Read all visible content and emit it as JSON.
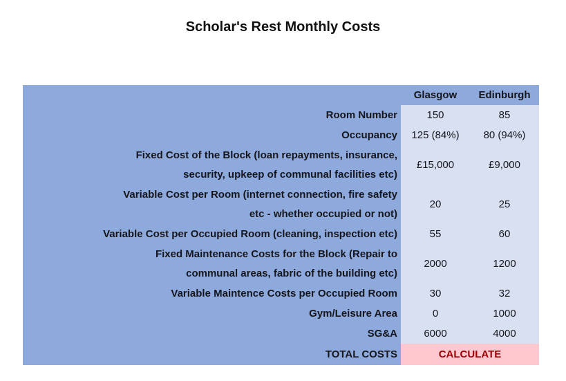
{
  "title": "Scholar's Rest Monthly Costs",
  "table": {
    "col_headers": [
      "Glasgow",
      "Edinburgh"
    ],
    "rows": [
      {
        "label": "Room Number",
        "glasgow": "150",
        "edinburgh": "85"
      },
      {
        "label": "Occupancy",
        "glasgow": "125 (84%)",
        "edinburgh": "80 (94%)"
      },
      {
        "label": "Fixed Cost of the Block (loan repayments, insurance,\nsecurity, upkeep of communal facilities etc)",
        "glasgow": "£15,000",
        "edinburgh": "£9,000"
      },
      {
        "label": "Variable Cost per Room (internet connection, fire safety\netc - whether occupied or not)",
        "glasgow": "20",
        "edinburgh": "25"
      },
      {
        "label": "Variable Cost per Occupied Room (cleaning, inspection etc)",
        "glasgow": "55",
        "edinburgh": "60"
      },
      {
        "label": "Fixed Maintenance Costs for the Block (Repair to\ncommunal areas, fabric of the building etc)",
        "glasgow": "2000",
        "edinburgh": "1200"
      },
      {
        "label": "Variable Maintence Costs per Occupied Room",
        "glasgow": "30",
        "edinburgh": "32"
      },
      {
        "label": "Gym/Leisure Area",
        "glasgow": "0",
        "edinburgh": "1000"
      },
      {
        "label": "SG&A",
        "glasgow": "6000",
        "edinburgh": "4000"
      }
    ],
    "total_label": "TOTAL COSTS",
    "total_value": "CALCULATE"
  },
  "colors": {
    "label_bg": "#8ea9db",
    "value_bg": "#d9e0f1",
    "total_bg": "#ffc7ce",
    "total_text": "#9c0006"
  }
}
